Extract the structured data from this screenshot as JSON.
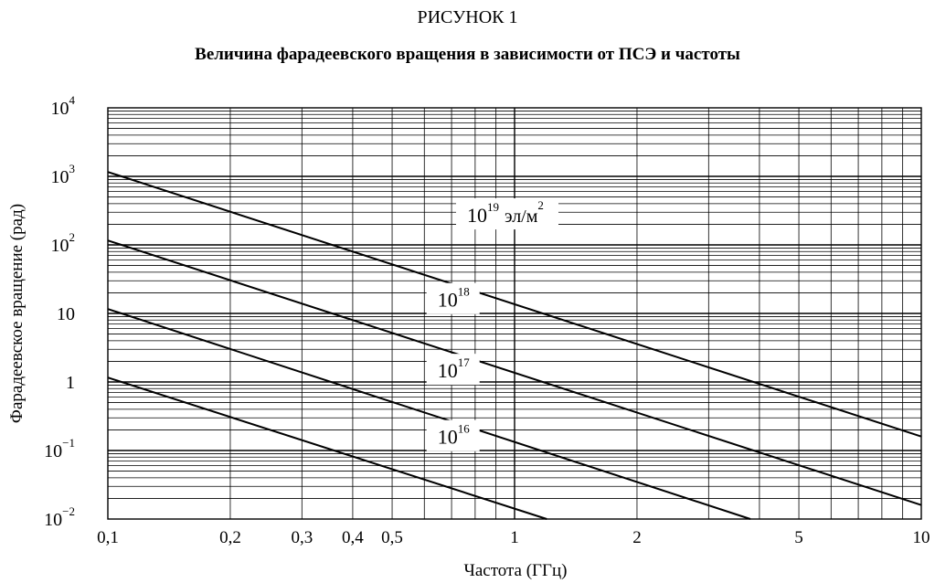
{
  "figure_label": "РИСУНОК 1",
  "chart_data": {
    "type": "line",
    "title": "Величина фарадеевского вращения в зависимости от ПСЭ и частоты",
    "xlabel": "Частота (ГГц)",
    "ylabel": "Фарадеевское вращение (рад)",
    "x_scale": "log",
    "y_scale": "log",
    "xlim": [
      0.1,
      10
    ],
    "ylim": [
      0.01,
      10000
    ],
    "grid": true,
    "x_ticks": [
      {
        "value": 0.1,
        "label": "0,1"
      },
      {
        "value": 0.2,
        "label": "0,2"
      },
      {
        "value": 0.3,
        "label": "0,3"
      },
      {
        "value": 0.4,
        "label": "0,4"
      },
      {
        "value": 0.5,
        "label": "0,5"
      },
      {
        "value": 1,
        "label": "1"
      },
      {
        "value": 2,
        "label": "2"
      },
      {
        "value": 5,
        "label": "5"
      },
      {
        "value": 10,
        "label": "10"
      }
    ],
    "y_ticks": [
      {
        "value": 0.01,
        "base": "10",
        "exp": "−2"
      },
      {
        "value": 0.1,
        "base": "10",
        "exp": "−1"
      },
      {
        "value": 1,
        "base": "1",
        "exp": ""
      },
      {
        "value": 10,
        "base": "10",
        "exp": ""
      },
      {
        "value": 100,
        "base": "10",
        "exp": "2"
      },
      {
        "value": 1000,
        "base": "10",
        "exp": "3"
      },
      {
        "value": 10000,
        "base": "10",
        "exp": "4"
      }
    ],
    "series": [
      {
        "label_base": "10",
        "label_exp": "19",
        "label_unit": "эл/м",
        "label_unit_exp": "2",
        "x": [
          0.1,
          10
        ],
        "y": [
          1160,
          0.16
        ],
        "label_at": [
          0.78,
          215
        ]
      },
      {
        "label_base": "10",
        "label_exp": "18",
        "label_unit": "",
        "label_unit_exp": "",
        "x": [
          0.1,
          10
        ],
        "y": [
          116,
          0.016
        ],
        "label_at": [
          0.66,
          12.5
        ]
      },
      {
        "label_base": "10",
        "label_exp": "17",
        "label_unit": "",
        "label_unit_exp": "",
        "x": [
          0.1,
          3.8
        ],
        "y": [
          11.6,
          0.01
        ],
        "label_at": [
          0.66,
          1.16
        ]
      },
      {
        "label_base": "10",
        "label_exp": "16",
        "label_unit": "",
        "label_unit_exp": "",
        "x": [
          0.1,
          1.2
        ],
        "y": [
          1.16,
          0.01
        ],
        "label_at": [
          0.66,
          0.125
        ]
      }
    ]
  }
}
